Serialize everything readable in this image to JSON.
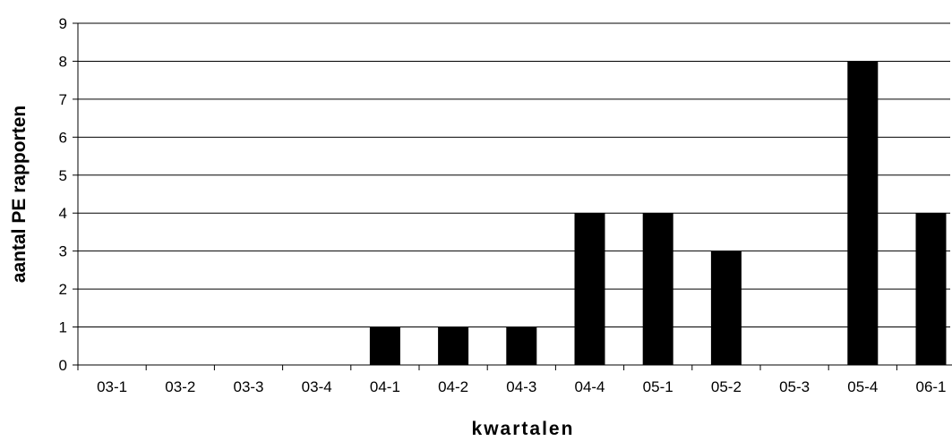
{
  "chart_data": {
    "type": "bar",
    "title": "",
    "xlabel": "kwartalen",
    "ylabel": "aantal PE rapporten",
    "categories": [
      "03-1",
      "03-2",
      "03-3",
      "03-4",
      "04-1",
      "04-2",
      "04-3",
      "04-4",
      "05-1",
      "05-2",
      "05-3",
      "05-4",
      "06-1"
    ],
    "values": [
      0,
      0,
      0,
      0,
      1,
      1,
      1,
      4,
      4,
      3,
      0,
      8,
      4
    ],
    "ylim": [
      0,
      9
    ],
    "yticks": [
      "0",
      "1",
      "2",
      "3",
      "4",
      "5",
      "6",
      "7",
      "8",
      "9"
    ],
    "grid": true,
    "legend": "none",
    "colors": {
      "bar": "#000000",
      "grid": "#000000",
      "background": "#ffffff"
    }
  }
}
